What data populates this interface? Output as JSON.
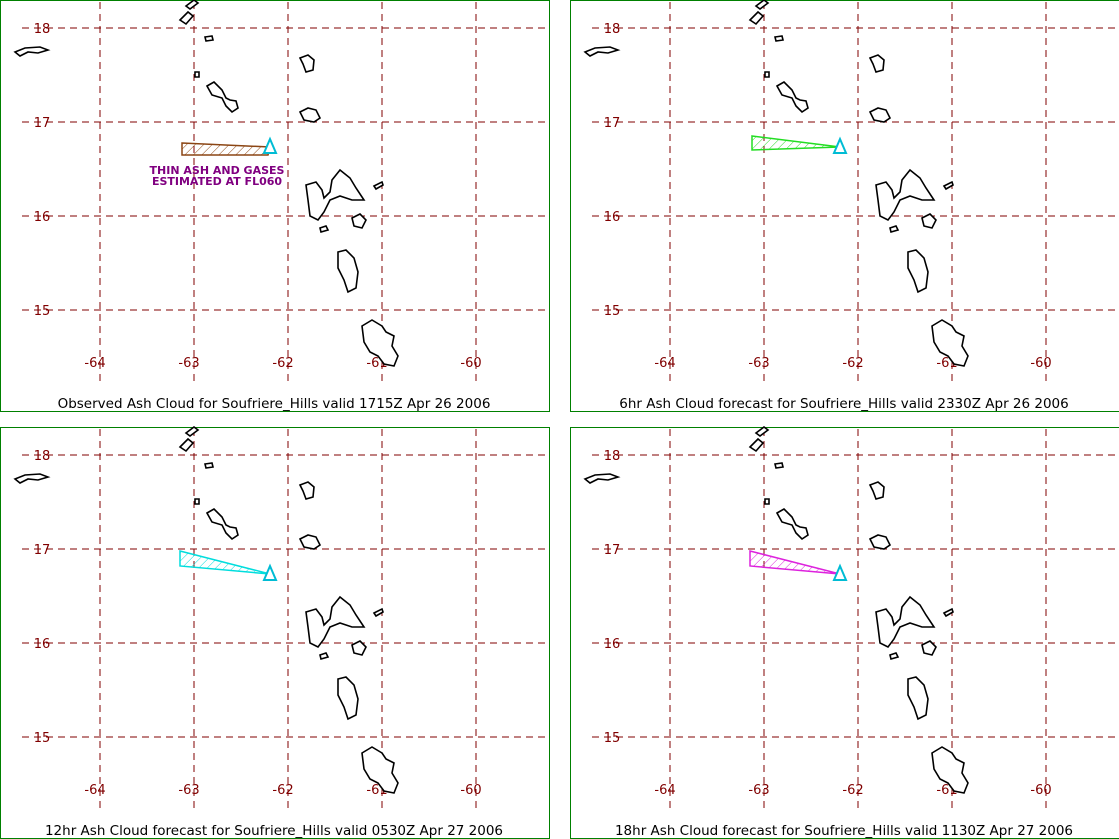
{
  "lat_labels": [
    18,
    17,
    16,
    15
  ],
  "lon_labels": [
    -64,
    -63,
    -62,
    -61,
    -60
  ],
  "panels": [
    {
      "caption": "Observed Ash Cloud for Soufriere_Hills valid 1715Z Apr 26 2006",
      "plume_color": "#8b4513",
      "annotation": [
        "THIN ASH AND GASES",
        "ESTIMATED AT FL060"
      ]
    },
    {
      "caption": "6hr Ash Cloud forecast for Soufriere_Hills valid 2330Z Apr 26 2006",
      "plume_color": "#22dd22"
    },
    {
      "caption": "12hr Ash Cloud forecast for Soufriere_Hills valid 0530Z Apr 27 2006",
      "plume_color": "#00dddd"
    },
    {
      "caption": "18hr Ash Cloud forecast for Soufriere_Hills valid 1130Z Apr 27 2006",
      "plume_color": "#dd22dd"
    }
  ]
}
